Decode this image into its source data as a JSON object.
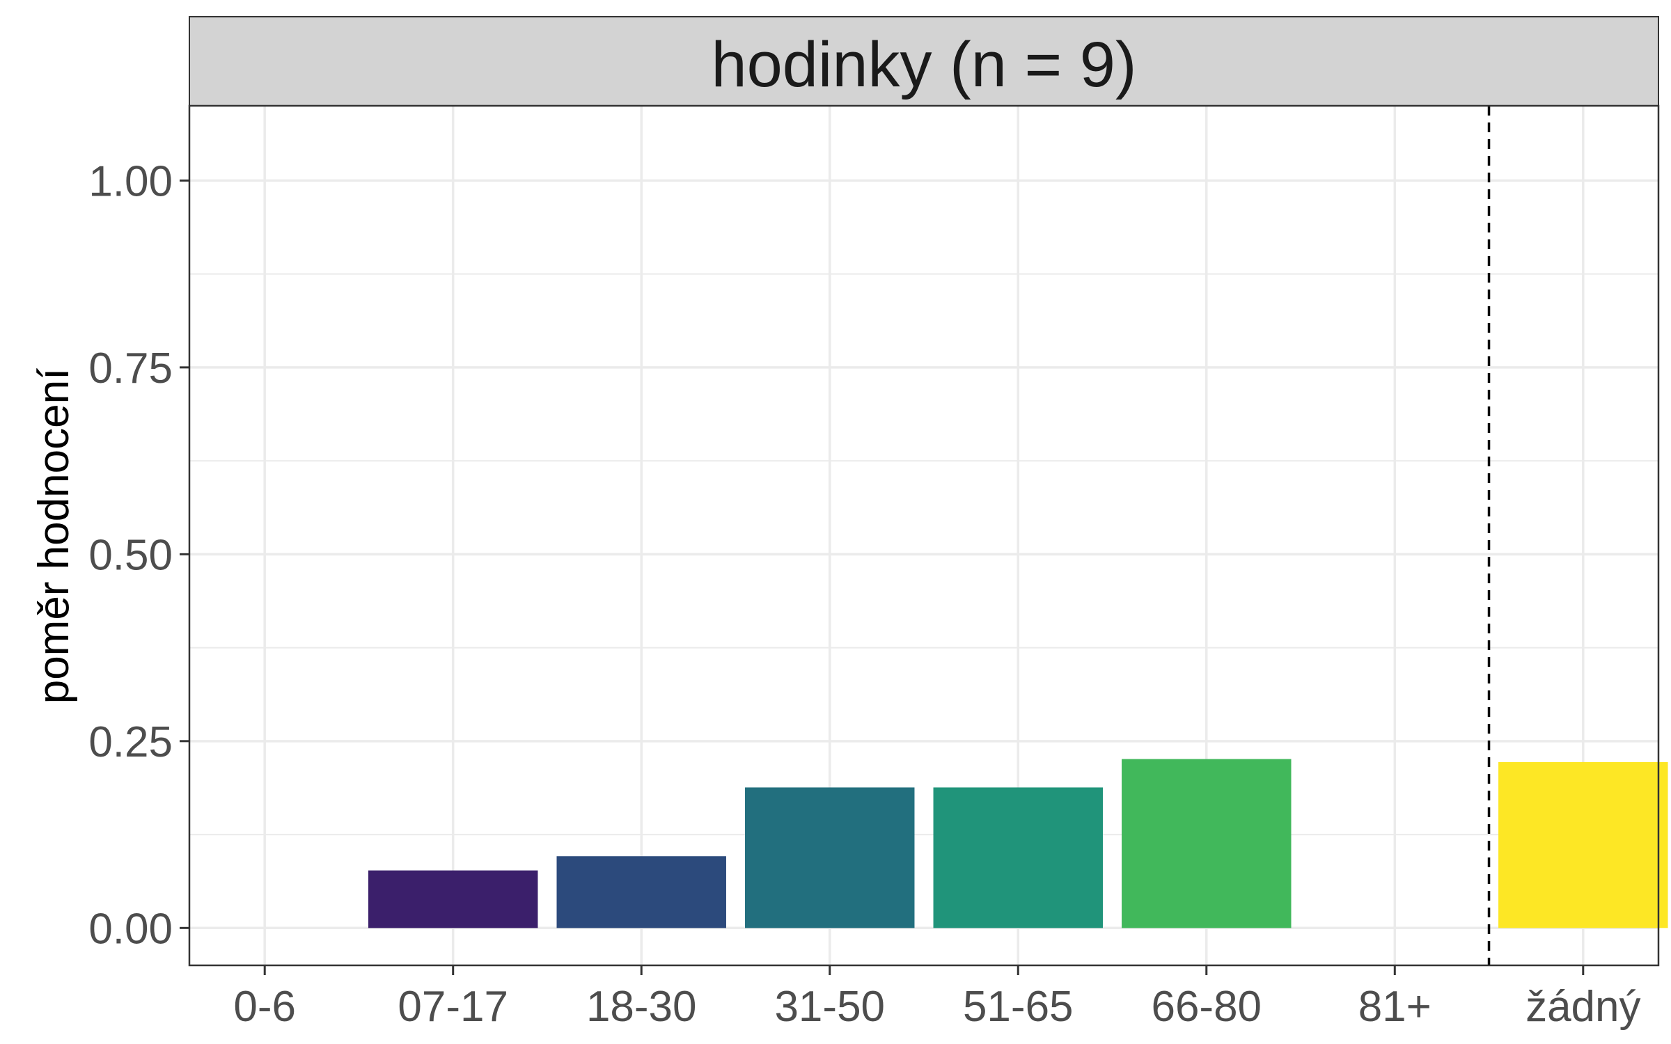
{
  "chart_data": {
    "type": "bar",
    "title": "hodinky (n = 9)",
    "xlabel": "",
    "ylabel": "poměr hodnocení",
    "categories": [
      "0-6",
      "07-17",
      "18-30",
      "31-50",
      "51-65",
      "66-80",
      "81+",
      "žádný"
    ],
    "values": [
      0,
      0.077,
      0.096,
      0.188,
      0.188,
      0.226,
      0,
      0.222
    ],
    "colors": [
      "#440154",
      "#3b1f6b",
      "#2c4a7c",
      "#226f7e",
      "#20947a",
      "#41b85b",
      "#8fd744",
      "#fde725"
    ],
    "ylim": [
      -0.05,
      1.1
    ],
    "yticks": [
      0,
      0.25,
      0.5,
      0.75,
      1.0
    ],
    "ytick_labels": [
      "0.00",
      "0.25",
      "0.50",
      "0.75",
      "1.00"
    ],
    "grid": true,
    "reference_line": {
      "between": [
        "81+",
        "žádný"
      ],
      "style": "dashed"
    }
  }
}
